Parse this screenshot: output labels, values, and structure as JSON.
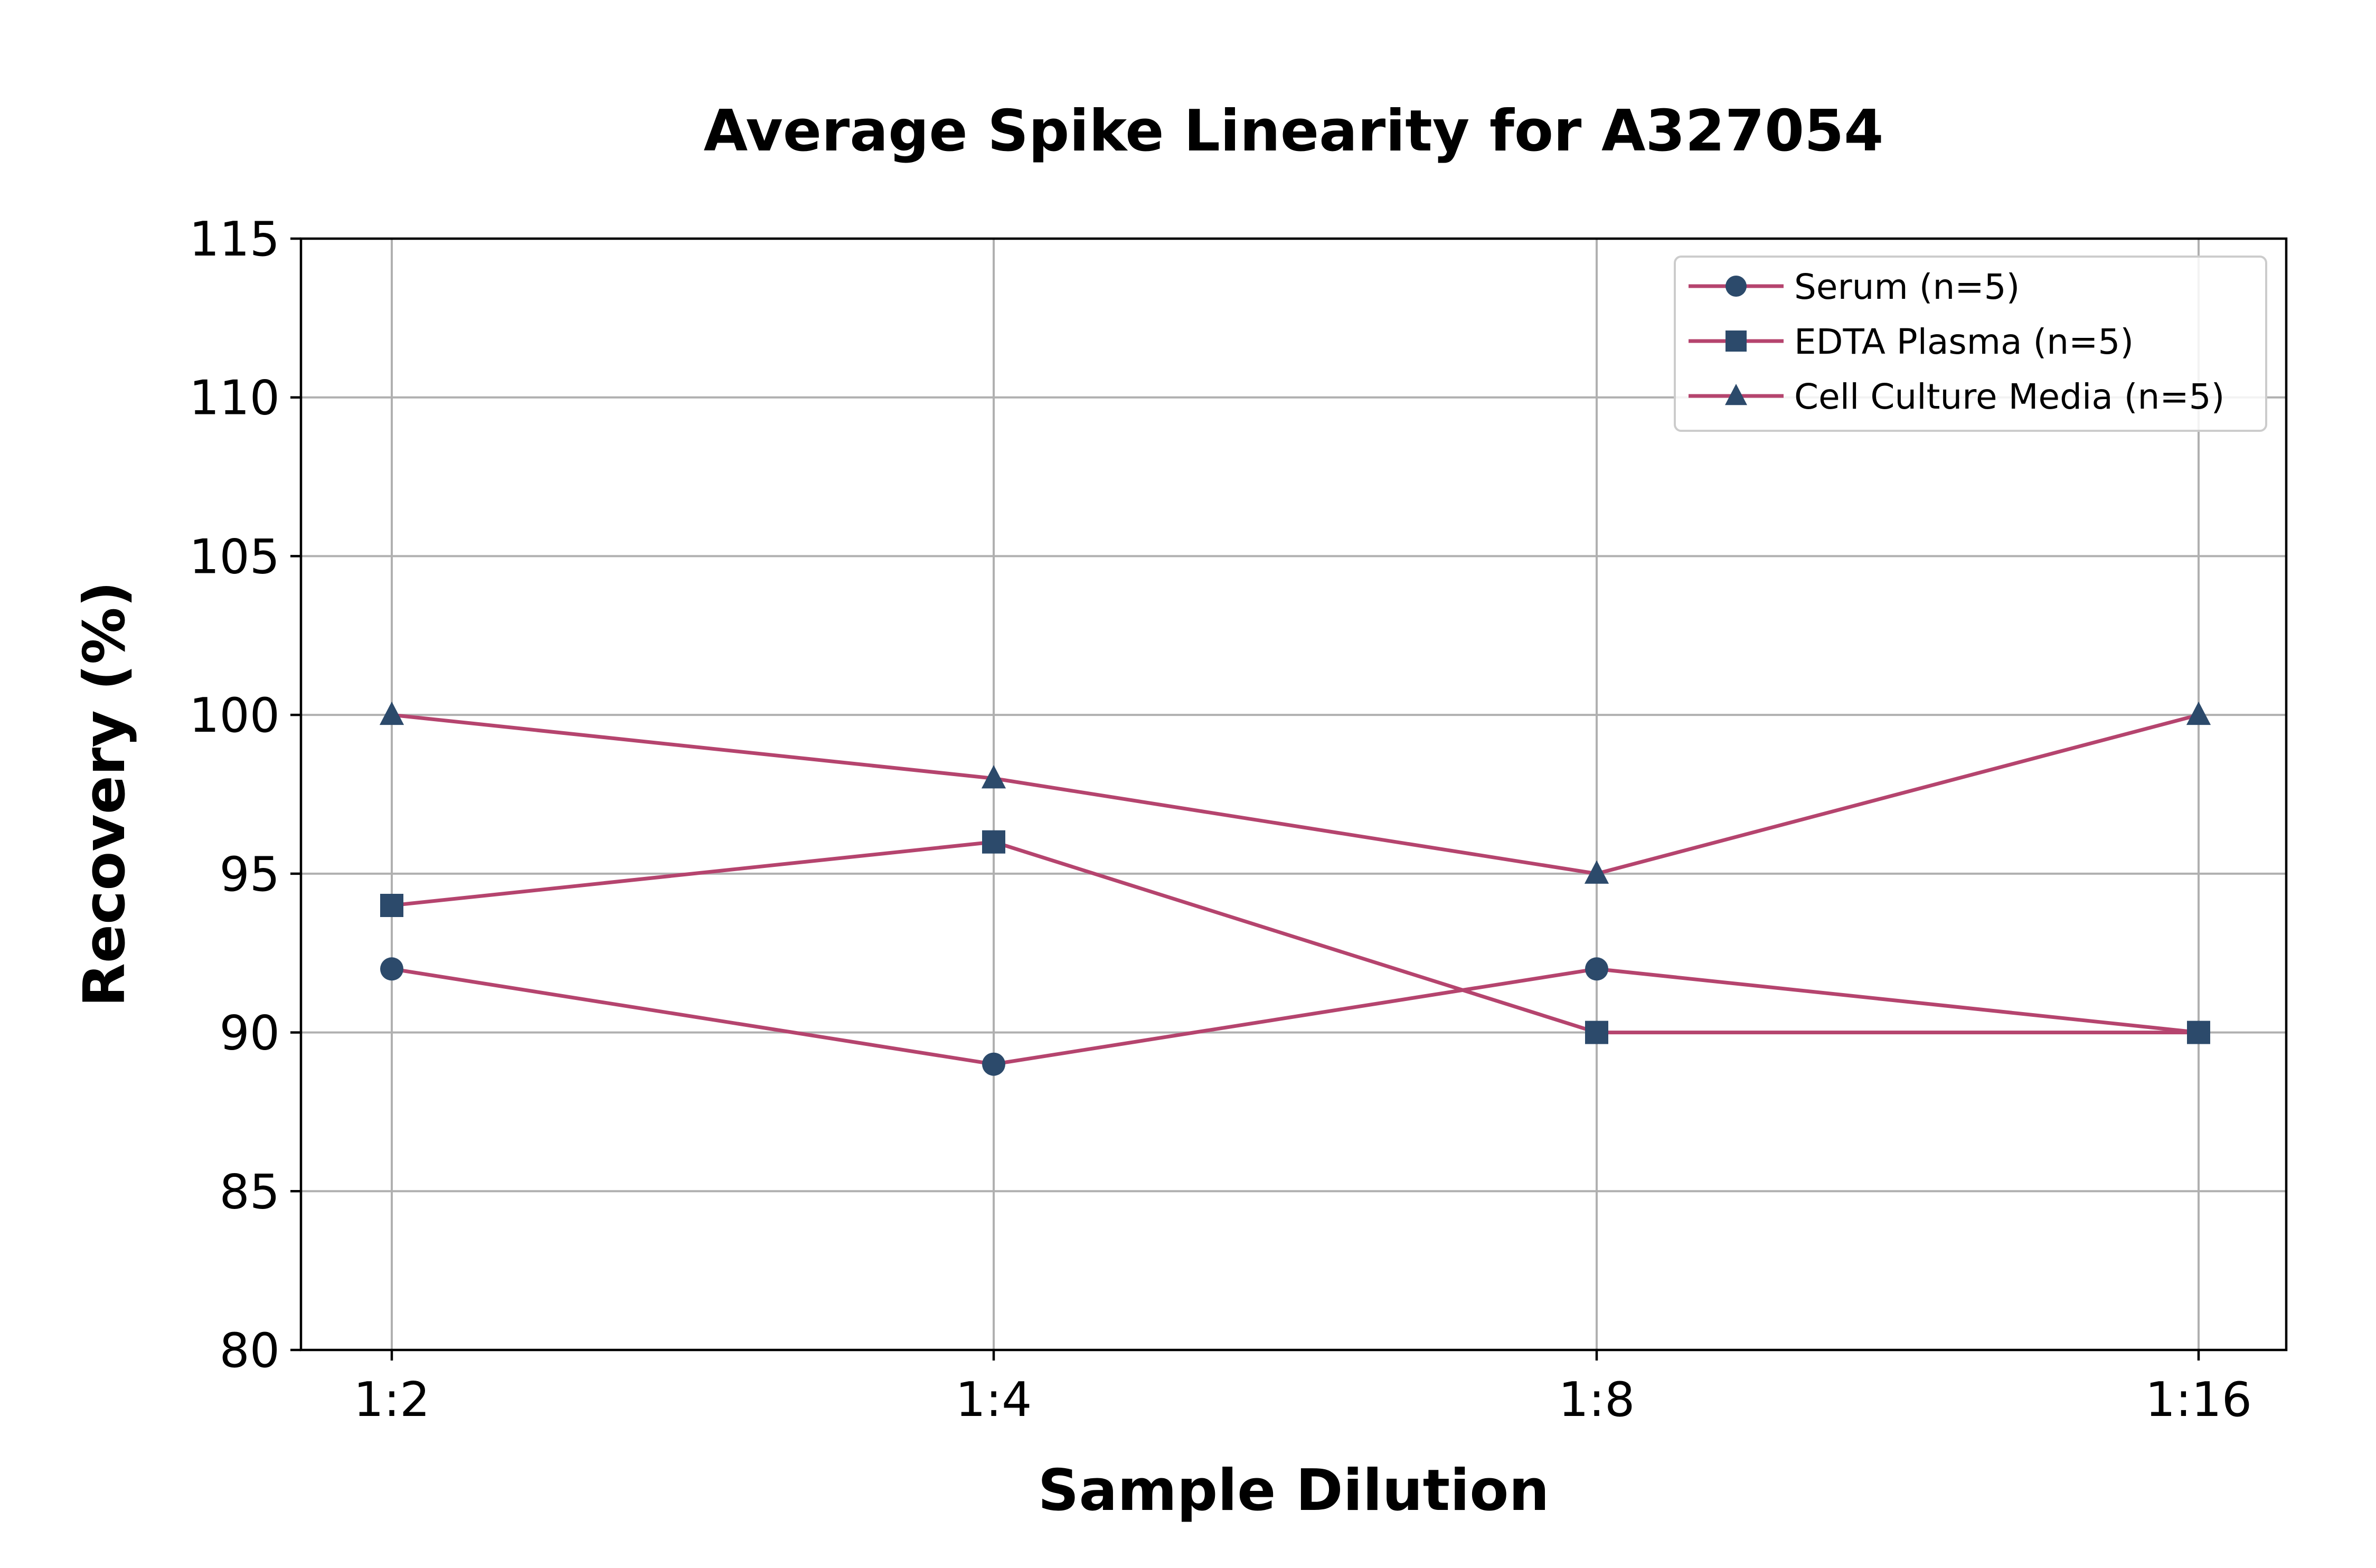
{
  "chart_data": {
    "type": "line",
    "title": "Average Spike Linearity for A327054",
    "xlabel": "Sample Dilution",
    "ylabel": "Recovery (%)",
    "categories": [
      "1:2",
      "1:4",
      "1:8",
      "1:16"
    ],
    "ylim": [
      80,
      115
    ],
    "yticks": [
      80,
      85,
      90,
      95,
      100,
      105,
      110,
      115
    ],
    "grid": true,
    "legend_position": "top-right",
    "line_color": "#b5446e",
    "marker_color": "#2c4a6b",
    "series": [
      {
        "name": "Serum (n=5)",
        "marker": "circle",
        "values": [
          92,
          89,
          92,
          90
        ]
      },
      {
        "name": "EDTA Plasma (n=5)",
        "marker": "square",
        "values": [
          94,
          96,
          90,
          90
        ]
      },
      {
        "name": "Cell Culture Media (n=5)",
        "marker": "triangle",
        "values": [
          100,
          98,
          95,
          100
        ]
      }
    ]
  }
}
